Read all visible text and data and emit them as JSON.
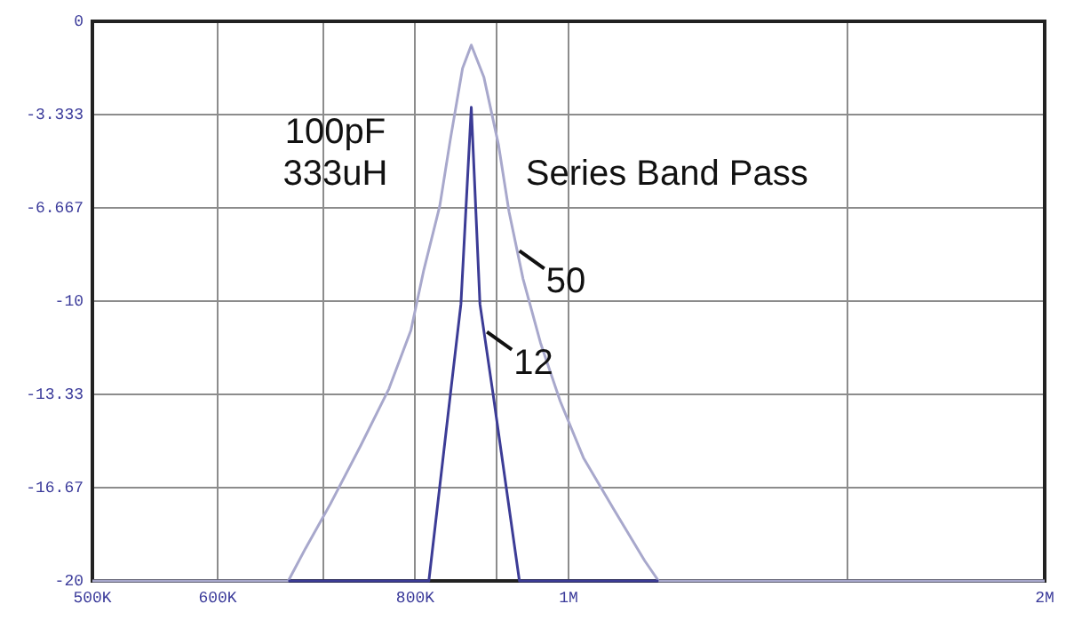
{
  "chart_data": {
    "type": "line",
    "series": [
      {
        "color": "#a8a8cc",
        "x": [
          500000,
          665000,
          682000,
          707000,
          739000,
          770000,
          795000,
          810000,
          829000,
          842000,
          857000,
          868000,
          884000,
          903000,
          917000,
          936000,
          960000,
          988000,
          1022000,
          1068000,
          1117000,
          1140000,
          2000000
        ],
        "values": [
          -20,
          -20,
          -18.83,
          -17.25,
          -15.16,
          -13.13,
          -11.04,
          -8.89,
          -6.61,
          -4.21,
          -1.68,
          -0.85,
          -1.99,
          -4.4,
          -6.8,
          -9.21,
          -11.49,
          -13.58,
          -15.6,
          -17.44,
          -19.27,
          -20,
          -20
        ]
      },
      {
        "color": "#3c3c96",
        "x": [
          665000,
          816000,
          842000,
          855000,
          868000,
          879000,
          896000,
          931000,
          1140000
        ],
        "values": [
          -20,
          -20,
          -13.33,
          -10.1,
          -3.07,
          -10.1,
          -13.33,
          -20,
          -20
        ]
      }
    ],
    "log": "x",
    "xlim": [
      500000,
      2000000
    ],
    "xticks": [
      {
        "value": 500000,
        "label": "500K"
      },
      {
        "value": 600000,
        "label": "600K"
      },
      {
        "value": 700000,
        "label": null
      },
      {
        "value": 800000,
        "label": "800K"
      },
      {
        "value": 900000,
        "label": null
      },
      {
        "value": 1000000,
        "label": "1M"
      },
      {
        "value": 1500000,
        "label": null
      },
      {
        "value": 2000000,
        "label": "2M"
      }
    ],
    "ylim": [
      -20,
      0
    ],
    "yticks": [
      0,
      -3.333,
      -6.667,
      -10,
      -13.33,
      -16.67,
      -20
    ],
    "grid": true,
    "marker": "none",
    "annotations": [
      "100pF",
      "333uH",
      "Series Band Pass",
      {
        "text": "50",
        "x": 931000,
        "y": -8.2
      },
      {
        "text": "12",
        "x": 888000,
        "y": -11.1
      }
    ]
  }
}
